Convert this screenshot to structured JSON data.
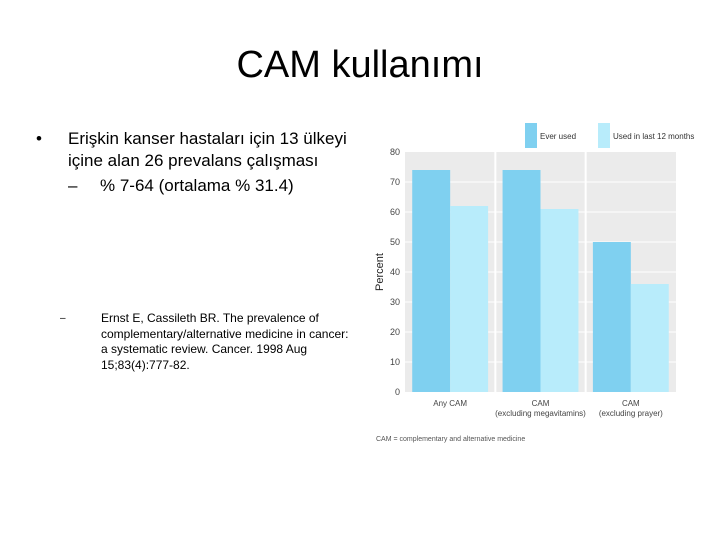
{
  "slide": {
    "title": "CAM kullanımı",
    "bullet_marker": "•",
    "bullet": "Erişkin kanser hastaları için 13 ülkeyi içine alan 26 prevalans çalışması",
    "sub_marker": "–",
    "sub_bullet": "% 7-64 (ortalama % 31.4)",
    "reference_marker": "–",
    "reference": "Ernst E, Cassileth BR. The prevalence of complementary/alternative medicine in cancer: a systematic review. Cancer. 1998 Aug 15;83(4):777-82."
  },
  "colors": {
    "series_1": "#7fd0f0",
    "series_2": "#b8ecfb",
    "plot_bg": "#ebebeb",
    "grid": "#ffffff"
  },
  "chart_data": {
    "type": "bar",
    "ylabel": "Percent",
    "ylim": [
      0,
      80
    ],
    "yticks": [
      "0",
      "10",
      "20",
      "30",
      "40",
      "50",
      "60",
      "70",
      "80"
    ],
    "categories": [
      "Any CAM",
      "CAM (excluding megavitamins)",
      "CAM (excluding prayer)"
    ],
    "series": [
      {
        "name": "Ever used",
        "values": [
          74,
          74,
          50
        ]
      },
      {
        "name": "Used in last 12 months",
        "values": [
          62,
          61,
          36
        ]
      }
    ],
    "footnote": "CAM = complementary and alternative medicine",
    "legend": "top",
    "grid": true
  }
}
